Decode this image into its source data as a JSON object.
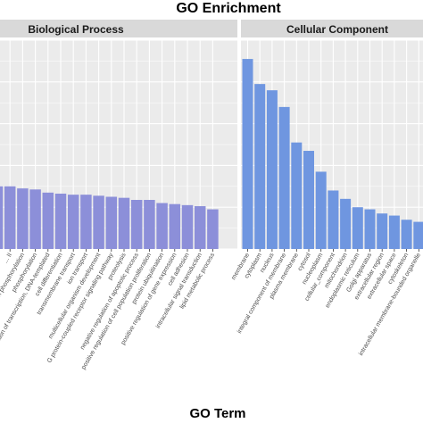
{
  "chart_data": {
    "type": "bar",
    "title": "GO Enrichment",
    "xlabel": "GO Term",
    "ylabel": "",
    "ylim": [
      0,
      100
    ],
    "grid": true,
    "facets": [
      {
        "name": "Biological Process",
        "color": "#8c8fd9",
        "categories": [
          "membrane ...",
          "... II",
          "...in phosphorylation",
          "phosphorylation",
          "...ation of transcription, DNA-templated",
          "cell differentiation",
          "transmembrane transport",
          "ion transport",
          "multicellular organism development",
          "G protein-coupled receptor signaling pathway",
          "proteolysis",
          "negative regulation of apoptotic process",
          "positive regulation of cell population proliferation",
          "protein ubiquitination",
          "positive regulation of gene expression",
          "cell adhesion",
          "intracellular signal transduction",
          "lipid metabolic process"
        ],
        "values": [
          30,
          30,
          29,
          28.5,
          27,
          26.5,
          26,
          26,
          25.5,
          25,
          24.5,
          23.5,
          23.5,
          22,
          21.5,
          21,
          20.5,
          19
        ]
      },
      {
        "name": "Cellular Component",
        "color": "#6f96e0",
        "categories": [
          "membrane",
          "cytoplasm",
          "nucleus",
          "integral component of membrane",
          "plasma membrane",
          "cytosol",
          "nucleoplasm",
          "cellular_component",
          "mitochondrion",
          "endoplasmic reticulum",
          "Golgi apparatus",
          "extracellular region",
          "extracellular space",
          "cytoskeleton",
          "intracellular membrane-bounded organelle"
        ],
        "values": [
          91,
          79,
          76,
          68,
          51,
          47,
          37,
          28,
          24,
          20,
          19,
          17,
          16,
          14,
          13
        ]
      }
    ]
  }
}
